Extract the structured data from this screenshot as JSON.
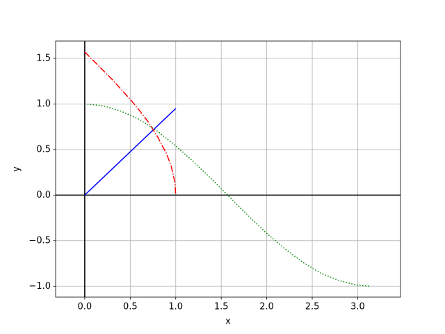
{
  "chart_data": {
    "type": "line",
    "x_label": "x",
    "y_label": "y",
    "xlim": [
      -0.32,
      3.47
    ],
    "ylim": [
      -1.12,
      1.69
    ],
    "xticks": [
      {
        "value": 0,
        "label": "0.0"
      },
      {
        "value": 0.5,
        "label": "0.5"
      },
      {
        "value": 1,
        "label": "1.0"
      },
      {
        "value": 1.5,
        "label": "1.5"
      },
      {
        "value": 2,
        "label": "2.0"
      },
      {
        "value": 2.5,
        "label": "2.5"
      },
      {
        "value": 3,
        "label": "3.0"
      }
    ],
    "yticks": [
      {
        "value": -1,
        "label": "−1.0"
      },
      {
        "value": -0.5,
        "label": "−0.5"
      },
      {
        "value": 0,
        "label": "0.0"
      },
      {
        "value": 0.5,
        "label": "0.5"
      },
      {
        "value": 1,
        "label": "1.0"
      },
      {
        "value": 1.5,
        "label": "1.5"
      }
    ],
    "grid": true,
    "reference_lines": {
      "x": 0,
      "y": 0,
      "color": "#000000"
    },
    "series": [
      {
        "color": "#0000ff",
        "linestyle": "solid",
        "x": [
          0,
          1
        ],
        "values": [
          0,
          0.95
        ]
      },
      {
        "color": "#ff0000",
        "linestyle": "dashdot",
        "x": [
          0,
          0.1,
          0.2,
          0.3,
          0.4,
          0.5,
          0.6,
          0.7,
          0.8,
          0.9,
          0.95,
          0.99,
          1
        ],
        "values": [
          1.57,
          1.47,
          1.37,
          1.27,
          1.16,
          1.05,
          0.93,
          0.8,
          0.64,
          0.45,
          0.32,
          0.14,
          0
        ]
      },
      {
        "color": "#008000",
        "linestyle": "dotted",
        "x": [
          0,
          0.2,
          0.4,
          0.6,
          0.8,
          1.0,
          1.2,
          1.4,
          1.6,
          1.8,
          2.0,
          2.2,
          2.4,
          2.6,
          2.8,
          3.0,
          3.14
        ],
        "values": [
          1,
          0.98,
          0.92,
          0.83,
          0.7,
          0.54,
          0.36,
          0.17,
          -0.03,
          -0.23,
          -0.42,
          -0.59,
          -0.74,
          -0.86,
          -0.94,
          -0.99,
          -1.0
        ]
      }
    ]
  }
}
